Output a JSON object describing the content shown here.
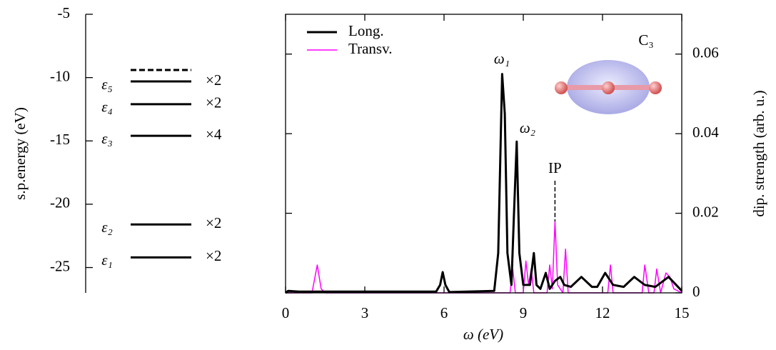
{
  "chart_data": [
    {
      "type": "levels",
      "ylabel": "s.p.energy (eV)",
      "ylim": [
        -27,
        -5
      ],
      "yticks": [
        -5,
        -10,
        -15,
        -20,
        -25
      ],
      "levels": [
        {
          "label": "ε₁",
          "value": -24.2,
          "degeneracy": "×2"
        },
        {
          "label": "ε₂",
          "value": -21.6,
          "degeneracy": "×2"
        },
        {
          "label": "ε₃",
          "value": -14.6,
          "degeneracy": "×4"
        },
        {
          "label": "ε₄",
          "value": -12.1,
          "degeneracy": "×2"
        },
        {
          "label": "ε₅",
          "value": -10.3,
          "degeneracy": "×2"
        },
        {
          "value": -9.4,
          "dashed": true
        }
      ]
    },
    {
      "type": "line",
      "title": "C₃",
      "xlabel": "ω (eV)",
      "y2label": "dip. strength (arb. u.)",
      "xlim": [
        0,
        15
      ],
      "xticks": [
        0,
        3,
        6,
        9,
        12,
        15
      ],
      "y2lim": [
        0,
        0.07
      ],
      "y2ticks": [
        0,
        0.02,
        0.04,
        0.06
      ],
      "legend": "top-left",
      "series": [
        {
          "name": "Long.",
          "color": "#000000",
          "axis": "y2",
          "x": [
            0,
            0.1,
            0.5,
            5.7,
            5.85,
            5.95,
            6.05,
            6.2,
            7.9,
            8.05,
            8.2,
            8.3,
            8.4,
            8.55,
            8.65,
            8.75,
            8.85,
            9.0,
            9.25,
            9.4,
            9.5,
            9.65,
            9.85,
            10.0,
            10.2,
            10.4,
            10.55,
            10.8,
            11.2,
            11.6,
            11.8,
            12.1,
            12.4,
            12.8,
            13.2,
            13.6,
            14.0,
            14.5,
            15
          ],
          "values": [
            0,
            0.0005,
            0.0003,
            0.0003,
            0.002,
            0.0052,
            0.002,
            0.0002,
            0.0005,
            0.01,
            0.055,
            0.045,
            0.01,
            0.002,
            0.02,
            0.038,
            0.01,
            0.002,
            0.002,
            0.01,
            0.002,
            0.001,
            0.005,
            0.001,
            0.003,
            0.004,
            0.002,
            0.0015,
            0.004,
            0.0015,
            0.0015,
            0.005,
            0.002,
            0.0015,
            0.004,
            0.002,
            0.0015,
            0.004,
            0.0005
          ]
        },
        {
          "name": "Transv.",
          "color": "#ff00ff",
          "axis": "y2",
          "x": [
            0,
            1.0,
            1.2,
            1.35,
            1.5,
            8.5,
            8.6,
            8.7,
            9.0,
            9.1,
            9.2,
            9.3,
            9.4,
            9.9,
            10.0,
            10.1,
            10.2,
            10.3,
            10.5,
            10.6,
            10.7,
            12.2,
            12.3,
            12.4,
            13.5,
            13.6,
            13.75,
            13.95,
            14.05,
            14.2,
            14.4,
            14.55,
            14.7,
            15
          ],
          "values": [
            0,
            0,
            0.007,
            0.001,
            0,
            0,
            0.006,
            0,
            0,
            0.008,
            0.002,
            0.006,
            0,
            0,
            0.007,
            0.001,
            0.018,
            0.002,
            0,
            0.011,
            0,
            0,
            0.007,
            0,
            0,
            0.007,
            0,
            0,
            0.006,
            0,
            0.005,
            0.004,
            0.001,
            0
          ]
        }
      ],
      "annotations": [
        {
          "text": "ω₁",
          "color": "#1a1adb"
        },
        {
          "text": "ω₂",
          "color": "#e01010"
        },
        {
          "text": "IP",
          "color": "#000000",
          "x": 10.2
        }
      ]
    }
  ]
}
